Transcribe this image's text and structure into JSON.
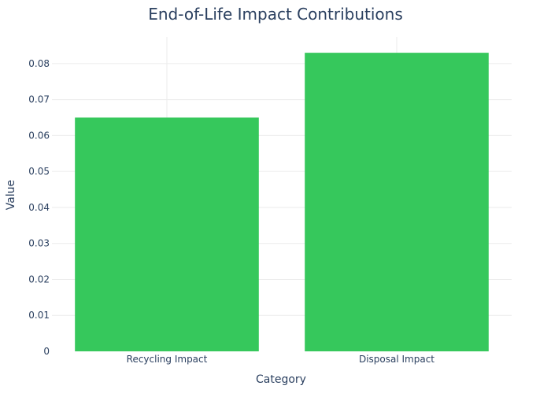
{
  "chart_data": {
    "type": "bar",
    "title": "End-of-Life Impact Contributions",
    "xlabel": "Category",
    "ylabel": "Value",
    "categories": [
      "Recycling Impact",
      "Disposal Impact"
    ],
    "values": [
      0.065,
      0.083
    ],
    "ylim": [
      0,
      0.0874
    ],
    "yticks": [
      0,
      0.01,
      0.02,
      0.03,
      0.04,
      0.05,
      0.06,
      0.07,
      0.08
    ],
    "ytick_labels": [
      "0",
      "0.01",
      "0.02",
      "0.03",
      "0.04",
      "0.05",
      "0.06",
      "0.07",
      "0.08"
    ],
    "grid": true,
    "bar_color": "#36C85C"
  }
}
